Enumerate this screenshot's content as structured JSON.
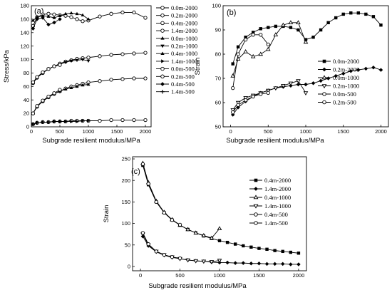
{
  "chart_data": [
    {
      "type": "line",
      "panel_label": "(a)",
      "xlabel": "Subgrade resilient modulus/MPa",
      "ylabel": "Stress/kPa",
      "xlim": [
        0,
        2100
      ],
      "ylim": [
        0,
        180
      ],
      "xticks": [
        0,
        500,
        1000,
        1500,
        2000
      ],
      "yticks": [
        0,
        20,
        40,
        60,
        80,
        100,
        120,
        140,
        160,
        180
      ],
      "legend_position": "right",
      "series": [
        {
          "name": "0.0m-2000",
          "marker": "open-circle",
          "x": [
            30,
            100,
            200,
            300,
            400,
            500,
            600,
            700,
            800,
            900,
            1000,
            1200,
            1400,
            1600,
            1800,
            2000
          ],
          "y": [
            20,
            30,
            38,
            44,
            49,
            53,
            57,
            60,
            62,
            64,
            66,
            68,
            70,
            71,
            72,
            72
          ]
        },
        {
          "name": "0.2m-2000",
          "marker": "open-circle",
          "x": [
            30,
            100,
            200,
            300,
            400,
            500,
            600,
            700,
            800,
            900,
            1000,
            1200,
            1400,
            1600,
            1800,
            2000
          ],
          "y": [
            65,
            73,
            80,
            86,
            90,
            94,
            97,
            99,
            101,
            102,
            103,
            105,
            107,
            108,
            109,
            110
          ]
        },
        {
          "name": "0.4m-2000",
          "marker": "open-circle",
          "x": [
            30,
            100,
            200,
            300,
            400,
            500,
            600,
            700,
            800,
            900,
            1000,
            1200,
            1400,
            1600,
            1800,
            2000
          ],
          "y": [
            150,
            163,
            167,
            168,
            167,
            166,
            165,
            163,
            160,
            157,
            158,
            164,
            168,
            170,
            170,
            162
          ]
        },
        {
          "name": "1.4m-2000",
          "marker": "open-circle",
          "x": [
            30,
            100,
            200,
            300,
            400,
            500,
            600,
            700,
            800,
            900,
            1000,
            1200,
            1400,
            1600,
            1800,
            2000
          ],
          "y": [
            4,
            6,
            7,
            7,
            8,
            8,
            8,
            9,
            9,
            9,
            9,
            9,
            10,
            10,
            10,
            10
          ]
        },
        {
          "name": "0.0m-1000",
          "marker": "filled-triangle-up",
          "x": [
            30,
            100,
            200,
            300,
            400,
            500,
            600,
            700,
            800,
            900,
            1000
          ],
          "y": [
            20,
            30,
            38,
            44,
            49,
            53,
            56,
            58,
            60,
            62,
            63
          ]
        },
        {
          "name": "0.2m-1000",
          "marker": "filled-triangle-down",
          "x": [
            30,
            100,
            200,
            300,
            400,
            500,
            600,
            700,
            800,
            900,
            1000
          ],
          "y": [
            65,
            73,
            80,
            86,
            90,
            93,
            96,
            98,
            99,
            100,
            98
          ]
        },
        {
          "name": "0.4m-1000",
          "marker": "filled-triangle-up",
          "x": [
            30,
            100,
            200,
            300,
            400,
            500,
            600,
            700,
            800,
            900,
            1000
          ],
          "y": [
            158,
            163,
            165,
            164,
            162,
            165,
            168,
            169,
            168,
            166,
            160
          ]
        },
        {
          "name": "1.4m-1000",
          "marker": "filled-triangle-right",
          "x": [
            30,
            100,
            200,
            300,
            400,
            500,
            600,
            700,
            800,
            900,
            1000
          ],
          "y": [
            4,
            6,
            7,
            7,
            8,
            8,
            8,
            8,
            8,
            9,
            9
          ]
        },
        {
          "name": "0.0m-500",
          "marker": "open-circle",
          "x": [
            30,
            100,
            200,
            300,
            400,
            500
          ],
          "y": [
            20,
            31,
            39,
            45,
            50,
            55
          ]
        },
        {
          "name": "0.2m-500",
          "marker": "open-circle",
          "x": [
            30,
            100,
            200,
            300,
            400,
            500
          ],
          "y": [
            66,
            74,
            81,
            86,
            90,
            92
          ]
        },
        {
          "name": "0.4m-500",
          "marker": "filled-diamond",
          "x": [
            30,
            100,
            200,
            300,
            400,
            500
          ],
          "y": [
            146,
            160,
            162,
            152,
            155,
            160
          ]
        },
        {
          "name": "1.4m-500",
          "marker": "plus",
          "x": [
            30,
            100,
            200,
            300,
            400,
            500
          ],
          "y": [
            4,
            6,
            7,
            7,
            8,
            8
          ]
        }
      ]
    },
    {
      "type": "line",
      "panel_label": "(b)",
      "xlabel": "Subgrade resilient modulus/MPa",
      "ylabel": "Strain",
      "xlim": [
        -100,
        2100
      ],
      "ylim": [
        50,
        100
      ],
      "xticks": [
        0,
        500,
        1000,
        1500,
        2000
      ],
      "yticks": [
        50,
        60,
        70,
        80,
        90,
        100
      ],
      "legend_position": "right",
      "series": [
        {
          "name": "0.0m-2000",
          "marker": "filled-square",
          "x": [
            30,
            100,
            200,
            300,
            400,
            500,
            600,
            700,
            800,
            900,
            1000,
            1100,
            1200,
            1300,
            1400,
            1500,
            1600,
            1700,
            1800,
            1900,
            2000
          ],
          "y": [
            76,
            83,
            87,
            89,
            90.5,
            91,
            91.5,
            91.5,
            91,
            90,
            86,
            87,
            90,
            93,
            95,
            96.5,
            97,
            97,
            96.5,
            95.5,
            92
          ]
        },
        {
          "name": "0.2m-2000",
          "marker": "filled-diamond",
          "x": [
            30,
            100,
            200,
            300,
            400,
            500,
            600,
            700,
            800,
            900,
            1000,
            1100,
            1200,
            1300,
            1400,
            1500,
            1600,
            1700,
            1800,
            1900,
            2000
          ],
          "y": [
            55,
            58,
            60.5,
            62.5,
            64,
            65,
            66,
            66.5,
            67,
            67.5,
            67.5,
            68,
            69,
            70,
            71,
            72,
            73,
            73.5,
            74,
            74.5,
            73.5
          ]
        },
        {
          "name": "0.0m-1000",
          "marker": "open-triangle-up",
          "x": [
            30,
            100,
            200,
            300,
            400,
            500,
            600,
            700,
            800,
            900,
            1000
          ],
          "y": [
            71,
            78,
            81,
            79,
            80,
            82,
            88,
            92,
            93,
            93,
            85
          ]
        },
        {
          "name": "0.2m-1000",
          "marker": "open-triangle-down",
          "x": [
            30,
            100,
            200,
            300,
            400,
            500,
            600,
            700,
            800,
            900,
            1000
          ],
          "y": [
            57,
            60,
            62,
            63,
            64,
            65,
            66,
            67,
            68,
            69,
            64
          ]
        },
        {
          "name": "0.0m-500",
          "marker": "open-circle",
          "x": [
            30,
            100,
            200,
            300,
            400,
            500
          ],
          "y": [
            66,
            80,
            86,
            88,
            88,
            84
          ]
        },
        {
          "name": "0.2m-500",
          "marker": "open-circle",
          "x": [
            30,
            100,
            200,
            300,
            400,
            500
          ],
          "y": [
            56,
            59,
            61,
            62.5,
            63.5,
            64
          ]
        }
      ]
    },
    {
      "type": "line",
      "panel_label": "(c)",
      "xlabel": "Subgrade resilient modulus/MPa",
      "ylabel": "Strain",
      "xlim": [
        -100,
        2100
      ],
      "ylim": [
        -10,
        255
      ],
      "xticks": [
        0,
        500,
        1000,
        1500,
        2000
      ],
      "yticks": [
        0,
        50,
        100,
        150,
        200,
        250
      ],
      "legend_position": "right",
      "series": [
        {
          "name": "0.4m-2000",
          "marker": "filled-square",
          "x": [
            30,
            100,
            200,
            300,
            400,
            500,
            600,
            700,
            800,
            900,
            1000,
            1100,
            1200,
            1300,
            1400,
            1500,
            1600,
            1700,
            1800,
            1900,
            2000
          ],
          "y": [
            235,
            190,
            150,
            125,
            108,
            96,
            86,
            78,
            71,
            65,
            60,
            56,
            52,
            48,
            45,
            42,
            40,
            37,
            35,
            33,
            31
          ]
        },
        {
          "name": "1.4m-2000",
          "marker": "filled-diamond",
          "x": [
            30,
            100,
            200,
            300,
            400,
            500,
            600,
            700,
            800,
            900,
            1000,
            1100,
            1200,
            1300,
            1400,
            1500,
            1600,
            1700,
            1800,
            1900,
            2000
          ],
          "y": [
            70,
            48,
            34,
            26,
            21,
            18,
            15,
            13,
            12,
            10,
            9,
            9,
            8,
            8,
            7,
            7,
            6,
            6,
            6,
            5,
            5
          ]
        },
        {
          "name": "0.4m-1000",
          "marker": "open-triangle-up",
          "x": [
            30,
            100,
            200,
            300,
            400,
            500,
            600,
            700,
            800,
            900,
            1000
          ],
          "y": [
            240,
            195,
            152,
            126,
            109,
            96,
            86,
            78,
            72,
            66,
            88
          ]
        },
        {
          "name": "1.4m-1000",
          "marker": "open-triangle-down",
          "x": [
            30,
            100,
            200,
            300,
            400,
            500,
            600,
            700,
            800,
            900,
            1000
          ],
          "y": [
            75,
            50,
            35,
            27,
            22,
            18,
            15,
            13,
            12,
            11,
            14
          ]
        },
        {
          "name": "0.4m-500",
          "marker": "open-circle",
          "x": [
            30,
            100,
            200,
            300,
            400,
            500
          ],
          "y": [
            238,
            192,
            150,
            125,
            108,
            97
          ]
        },
        {
          "name": "1.4m-500",
          "marker": "open-circle",
          "x": [
            30,
            100,
            200,
            300,
            400,
            500
          ],
          "y": [
            78,
            52,
            35,
            27,
            22,
            19
          ]
        }
      ]
    }
  ]
}
